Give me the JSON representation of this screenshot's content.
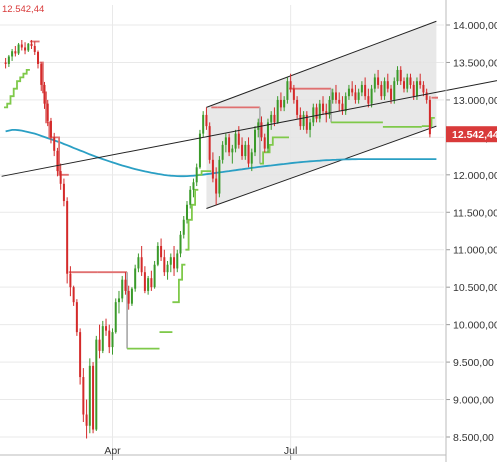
{
  "chart_data": {
    "type": "candlestick",
    "last_price_label": "12.542,44",
    "top_left_label": "12.542,44",
    "colors": {
      "up": "#3a9a2a",
      "down": "#d42a2a",
      "ma_line": "#2a9fc4",
      "stop_upper": "#e07070",
      "stop_lower": "#7fc94a",
      "stop_neutral": "#b0b0b0",
      "channel_fill": "#e4e4e4",
      "last_price_bg": "#d93a3a",
      "grid": "#e9e9e9"
    },
    "y_axis": {
      "min": 8350,
      "max": 14150,
      "ticks": [
        14000,
        13500,
        13000,
        12500,
        12000,
        11500,
        11000,
        10500,
        10000,
        9500,
        9000,
        8500
      ],
      "tick_labels": [
        "14.000,00",
        "13.500,00",
        "13.000,00",
        "12.500,00",
        "12.000,00",
        "11.500,00",
        "11.000,00",
        "10.500,00",
        "10.000,00",
        "9.500,00",
        "9.000,00",
        "8.500,00"
      ]
    },
    "x_axis": {
      "n_bars": 134,
      "tick_labels": [
        {
          "label": "Apr",
          "bar": 33
        },
        {
          "label": "Jul",
          "bar": 88
        }
      ]
    },
    "candles": [
      [
        13500,
        13560,
        13420,
        13480
      ],
      [
        13480,
        13600,
        13440,
        13580
      ],
      [
        13580,
        13680,
        13520,
        13650
      ],
      [
        13650,
        13720,
        13580,
        13620
      ],
      [
        13620,
        13760,
        13600,
        13740
      ],
      [
        13740,
        13800,
        13660,
        13700
      ],
      [
        13700,
        13770,
        13610,
        13660
      ],
      [
        13660,
        13760,
        13640,
        13750
      ],
      [
        13750,
        13800,
        13680,
        13720
      ],
      [
        13720,
        13780,
        13600,
        13640
      ],
      [
        13640,
        13660,
        13420,
        13480
      ],
      [
        13480,
        13500,
        13120,
        13200
      ],
      [
        13200,
        13240,
        12880,
        12950
      ],
      [
        12950,
        13000,
        12650,
        12720
      ],
      [
        12720,
        12760,
        12420,
        12500
      ],
      [
        12500,
        12560,
        12250,
        12320
      ],
      [
        12320,
        12360,
        11980,
        12050
      ],
      [
        12050,
        12150,
        11800,
        11880
      ],
      [
        11880,
        11950,
        11580,
        11650
      ],
      [
        11650,
        11700,
        10550,
        10680
      ],
      [
        10680,
        10780,
        10380,
        10500
      ],
      [
        10500,
        10520,
        10250,
        10300
      ],
      [
        10300,
        10340,
        9850,
        9900
      ],
      [
        9900,
        9950,
        9200,
        9300
      ],
      [
        9300,
        9420,
        8700,
        8800
      ],
      [
        8800,
        9000,
        8480,
        8650
      ],
      [
        8650,
        9550,
        8550,
        9450
      ],
      [
        9450,
        9500,
        8550,
        8600
      ],
      [
        8600,
        9850,
        8580,
        9800
      ],
      [
        9800,
        10000,
        9550,
        9650
      ],
      [
        9650,
        10050,
        9620,
        9980
      ],
      [
        9980,
        10080,
        9850,
        9920
      ],
      [
        9920,
        10000,
        9620,
        9700
      ],
      [
        9700,
        9950,
        9600,
        9900
      ],
      [
        9900,
        10350,
        9880,
        10300
      ],
      [
        10300,
        10450,
        10150,
        10350
      ],
      [
        10350,
        10650,
        10300,
        10600
      ],
      [
        10600,
        10700,
        10400,
        10450
      ],
      [
        10450,
        10520,
        10200,
        10280
      ],
      [
        10280,
        10500,
        10250,
        10480
      ],
      [
        10480,
        10800,
        10440,
        10750
      ],
      [
        10750,
        10950,
        10700,
        10900
      ],
      [
        10900,
        11050,
        10650,
        10700
      ],
      [
        10700,
        10780,
        10420,
        10450
      ],
      [
        10450,
        10650,
        10400,
        10620
      ],
      [
        10620,
        10720,
        10450,
        10500
      ],
      [
        10500,
        10850,
        10480,
        10800
      ],
      [
        10800,
        11100,
        10780,
        11050
      ],
      [
        11050,
        11150,
        10850,
        10900
      ],
      [
        10900,
        11000,
        10650,
        10700
      ],
      [
        10700,
        10850,
        10600,
        10800
      ],
      [
        10800,
        10950,
        10700,
        10900
      ],
      [
        10900,
        11050,
        10650,
        10750
      ],
      [
        10750,
        11000,
        10700,
        10950
      ],
      [
        10950,
        11250,
        10900,
        11200
      ],
      [
        11200,
        11450,
        11150,
        11400
      ],
      [
        11400,
        11650,
        11350,
        11600
      ],
      [
        11600,
        11850,
        11550,
        11800
      ],
      [
        11800,
        11950,
        11700,
        11900
      ],
      [
        11900,
        12150,
        11850,
        12100
      ],
      [
        12100,
        12600,
        12080,
        12550
      ],
      [
        12550,
        12850,
        12500,
        12800
      ],
      [
        12800,
        12900,
        12600,
        12650
      ],
      [
        12650,
        12700,
        12150,
        12200
      ],
      [
        12200,
        12300,
        11900,
        11950
      ],
      [
        11950,
        12100,
        11600,
        11750
      ],
      [
        11750,
        12250,
        11700,
        12200
      ],
      [
        12200,
        12450,
        12150,
        12400
      ],
      [
        12400,
        12550,
        12300,
        12500
      ],
      [
        12500,
        12550,
        12250,
        12300
      ],
      [
        12300,
        12400,
        12150,
        12350
      ],
      [
        12350,
        12600,
        12300,
        12550
      ],
      [
        12550,
        12650,
        12350,
        12400
      ],
      [
        12400,
        12500,
        12200,
        12250
      ],
      [
        12250,
        12450,
        12200,
        12400
      ],
      [
        12400,
        12500,
        12100,
        12150
      ],
      [
        12150,
        12350,
        12050,
        12300
      ],
      [
        12300,
        12650,
        12250,
        12600
      ],
      [
        12600,
        12750,
        12500,
        12700
      ],
      [
        12700,
        12780,
        12450,
        12500
      ],
      [
        12500,
        12550,
        12300,
        12350
      ],
      [
        12350,
        12750,
        12300,
        12700
      ],
      [
        12700,
        12850,
        12600,
        12800
      ],
      [
        12800,
        12900,
        12650,
        12700
      ],
      [
        12700,
        13050,
        12680,
        13000
      ],
      [
        13000,
        13100,
        12850,
        12900
      ],
      [
        12900,
        13050,
        12850,
        13000
      ],
      [
        13000,
        13300,
        12950,
        13250
      ],
      [
        13250,
        13350,
        13100,
        13150
      ],
      [
        13150,
        13200,
        12950,
        13000
      ],
      [
        13000,
        13050,
        12750,
        12800
      ],
      [
        12800,
        12900,
        12600,
        12650
      ],
      [
        12650,
        12850,
        12600,
        12800
      ],
      [
        12800,
        12850,
        12550,
        12600
      ],
      [
        12600,
        12750,
        12500,
        12700
      ],
      [
        12700,
        12950,
        12650,
        12900
      ],
      [
        12900,
        12950,
        12700,
        12750
      ],
      [
        12750,
        13000,
        12700,
        12950
      ],
      [
        12950,
        13050,
        12800,
        12850
      ],
      [
        12850,
        12950,
        12700,
        12800
      ],
      [
        12800,
        13050,
        12750,
        13000
      ],
      [
        13000,
        13150,
        12950,
        13100
      ],
      [
        13100,
        13200,
        12950,
        13000
      ],
      [
        13000,
        13100,
        12850,
        12950
      ],
      [
        12950,
        13050,
        12800,
        12850
      ],
      [
        12850,
        13100,
        12800,
        13050
      ],
      [
        13050,
        13200,
        13000,
        13150
      ],
      [
        13150,
        13250,
        13050,
        13100
      ],
      [
        13100,
        13200,
        12950,
        13000
      ],
      [
        13000,
        13150,
        12950,
        13100
      ],
      [
        13100,
        13250,
        13050,
        13200
      ],
      [
        13200,
        13300,
        13000,
        13050
      ],
      [
        13050,
        13150,
        12900,
        12950
      ],
      [
        12950,
        13200,
        12900,
        13150
      ],
      [
        13150,
        13350,
        13100,
        13300
      ],
      [
        13300,
        13400,
        13150,
        13200
      ],
      [
        13200,
        13250,
        13000,
        13050
      ],
      [
        13050,
        13300,
        13000,
        13250
      ],
      [
        13250,
        13350,
        13100,
        13150
      ],
      [
        13150,
        13200,
        12950,
        13000
      ],
      [
        13000,
        13300,
        12950,
        13250
      ],
      [
        13250,
        13450,
        13200,
        13400
      ],
      [
        13400,
        13450,
        13200,
        13250
      ],
      [
        13250,
        13300,
        13100,
        13150
      ],
      [
        13150,
        13350,
        13100,
        13300
      ],
      [
        13300,
        13350,
        13150,
        13200
      ],
      [
        13200,
        13250,
        13000,
        13050
      ],
      [
        13050,
        13300,
        13000,
        13250
      ],
      [
        13250,
        13350,
        13150,
        13200
      ],
      [
        13200,
        13250,
        13050,
        13100
      ],
      [
        13100,
        13150,
        12950,
        13000
      ],
      [
        13000,
        13050,
        12500,
        12542
      ]
    ],
    "moving_average": {
      "name": "MA200",
      "start_bar": 0,
      "values": [
        12580,
        12590,
        12600,
        12600,
        12595,
        12590,
        12580,
        12570,
        12560,
        12550,
        12535,
        12520,
        12505,
        12490,
        12475,
        12460,
        12445,
        12430,
        12412,
        12395,
        12378,
        12360,
        12342,
        12325,
        12308,
        12290,
        12273,
        12256,
        12240,
        12225,
        12210,
        12195,
        12180,
        12166,
        12152,
        12138,
        12125,
        12112,
        12100,
        12088,
        12077,
        12066,
        12056,
        12046,
        12037,
        12028,
        12020,
        12012,
        12005,
        11998,
        11992,
        11988,
        11985,
        11983,
        11982,
        11982,
        11983,
        11985,
        11988,
        11992,
        11997,
        12002,
        12008,
        12014,
        12020,
        12026,
        12032,
        12038,
        12044,
        12050,
        12056,
        12062,
        12068,
        12074,
        12080,
        12086,
        12092,
        12098,
        12104,
        12110,
        12115,
        12120,
        12125,
        12130,
        12135,
        12140,
        12145,
        12150,
        12155,
        12160,
        12164,
        12168,
        12172,
        12176,
        12180,
        12183,
        12186,
        12189,
        12192,
        12195,
        12197,
        12199,
        12201,
        12203,
        12205,
        12206,
        12207,
        12208,
        12209,
        12210,
        12210,
        12210,
        12210,
        12210,
        12210,
        12210,
        12210,
        12210,
        12210,
        12210,
        12210,
        12210,
        12210,
        12210,
        12210,
        12210,
        12210,
        12210,
        12210,
        12210,
        12210,
        12210,
        12210,
        12210
      ]
    },
    "stop_line": [
      {
        "from_bar": 0,
        "to_bar": 7,
        "side": "lower",
        "values": [
          12900,
          12950,
          13050,
          13150,
          13250,
          13300,
          13350,
          13400
        ]
      },
      {
        "from_bar": 8,
        "to_bar": 8,
        "side": "upper",
        "values": [
          13780
        ]
      },
      {
        "from_bar": 9,
        "to_bar": 10,
        "side": "upper",
        "values": [
          13780,
          13780
        ]
      },
      {
        "from_bar": 11,
        "to_bar": 14,
        "side": "upper",
        "values": [
          13500,
          13100,
          12700,
          12500
        ]
      },
      {
        "from_bar": 15,
        "to_bar": 19,
        "side": "upper",
        "values": [
          12500,
          12500,
          12000,
          12000,
          12000
        ]
      },
      {
        "from_bar": 20,
        "to_bar": 28,
        "side": "upper",
        "values": [
          10700,
          10700,
          10700,
          10700,
          10700,
          10700,
          10700,
          10700,
          10700
        ]
      },
      {
        "from_bar": 29,
        "to_bar": 37,
        "side": "upper",
        "values": [
          10700,
          10700,
          10700,
          10700,
          10700,
          10700,
          10700,
          10700,
          10700
        ]
      },
      {
        "from_bar": 37,
        "to_bar": 38,
        "side": "neutral",
        "values": [
          10700,
          9680
        ]
      },
      {
        "from_bar": 38,
        "to_bar": 47,
        "side": "lower",
        "values": [
          9680,
          9680,
          9680,
          9680,
          9680,
          9680,
          9680,
          9680,
          9680,
          9680
        ]
      },
      {
        "from_bar": 48,
        "to_bar": 51,
        "side": "lower",
        "values": [
          9900,
          9900,
          9900,
          9900
        ]
      },
      {
        "from_bar": 52,
        "to_bar": 55,
        "side": "lower",
        "values": [
          10300,
          10300,
          10600,
          10800
        ]
      },
      {
        "from_bar": 56,
        "to_bar": 59,
        "side": "lower",
        "values": [
          11000,
          11400,
          11600,
          11800
        ]
      },
      {
        "from_bar": 60,
        "to_bar": 63,
        "side": "lower",
        "values": [
          12000,
          12050,
          12050,
          12050
        ]
      },
      {
        "from_bar": 64,
        "to_bar": 65,
        "side": "upper",
        "values": [
          12900,
          12900
        ]
      },
      {
        "from_bar": 66,
        "to_bar": 78,
        "side": "upper",
        "values": [
          12900,
          12900,
          12900,
          12900,
          12900,
          12900,
          12900,
          12900,
          12900,
          12900,
          12900,
          12900,
          12900
        ]
      },
      {
        "from_bar": 78,
        "to_bar": 79,
        "side": "neutral",
        "values": [
          12900,
          12150
        ]
      },
      {
        "from_bar": 79,
        "to_bar": 87,
        "side": "lower",
        "values": [
          12150,
          12300,
          12300,
          12400,
          12500,
          12500,
          12500,
          12500,
          12500
        ]
      },
      {
        "from_bar": 88,
        "to_bar": 100,
        "side": "upper",
        "values": [
          13150,
          13150,
          13150,
          13150,
          13150,
          13150,
          13150,
          13150,
          13150,
          13150,
          13150,
          13150,
          13150
        ]
      },
      {
        "from_bar": 100,
        "to_bar": 101,
        "side": "neutral",
        "values": [
          13150,
          12700
        ]
      },
      {
        "from_bar": 101,
        "to_bar": 116,
        "side": "lower",
        "values": [
          12700,
          12700,
          12700,
          12700,
          12700,
          12700,
          12700,
          12700,
          12700,
          12700,
          12700,
          12700,
          12700,
          12700,
          12700,
          12700
        ]
      },
      {
        "from_bar": 117,
        "to_bar": 128,
        "side": "lower",
        "values": [
          12640,
          12640,
          12640,
          12640,
          12640,
          12640,
          12640,
          12640,
          12640,
          12640,
          12640,
          12640
        ]
      },
      {
        "from_bar": 129,
        "to_bar": 132,
        "side": "lower",
        "values": [
          12650,
          12650,
          12650,
          12760
        ]
      },
      {
        "from_bar": 132,
        "to_bar": 133,
        "side": "upper",
        "values": [
          13030,
          13030
        ]
      },
      {
        "from_bar": 133,
        "to_bar": 133,
        "side": "upper",
        "values": [
          13030
        ]
      }
    ],
    "channel": {
      "upper_line": {
        "from": {
          "bar": 62,
          "value": 12900
        },
        "to": {
          "bar": 133,
          "value": 14050
        }
      },
      "lower_line": {
        "from": {
          "bar": 62,
          "value": 11550
        },
        "to": {
          "bar": 133,
          "value": 12650
        }
      }
    },
    "trend_line": {
      "from": {
        "bar": 0,
        "value": 11980
      },
      "to": {
        "bar": 133,
        "value": 13100
      }
    }
  }
}
